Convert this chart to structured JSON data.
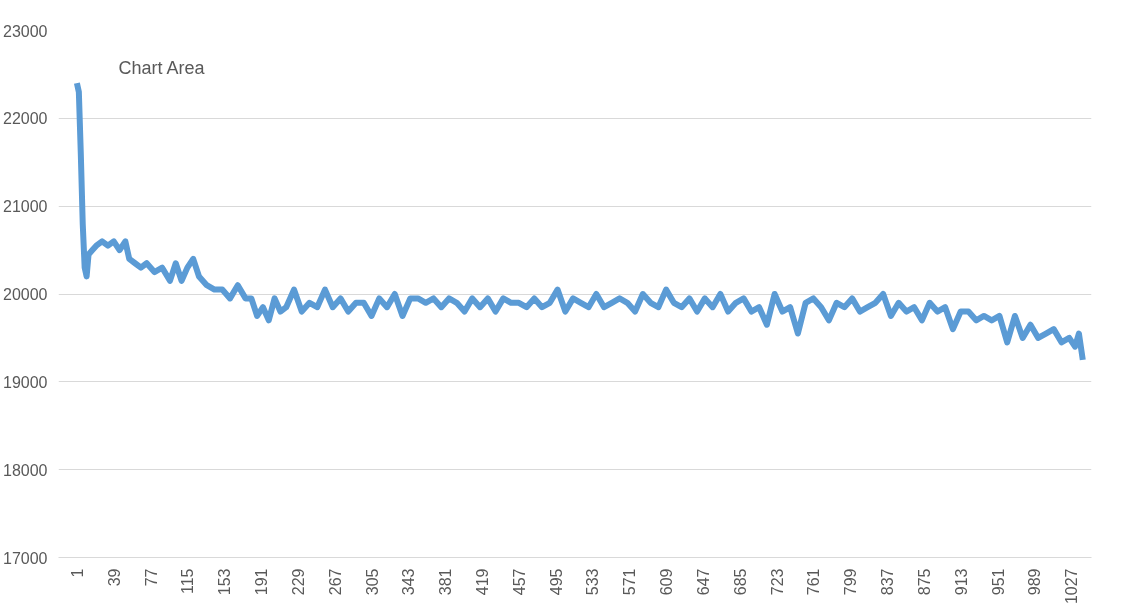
{
  "chart_data": {
    "type": "line",
    "annotations": [
      "Chart Area"
    ],
    "x": [
      1,
      3,
      5,
      7,
      9,
      11,
      13,
      17,
      21,
      27,
      33,
      39,
      45,
      51,
      55,
      61,
      67,
      73,
      81,
      89,
      97,
      103,
      109,
      115,
      121,
      127,
      135,
      143,
      151,
      159,
      167,
      175,
      181,
      187,
      193,
      199,
      205,
      211,
      217,
      225,
      233,
      241,
      249,
      257,
      265,
      273,
      281,
      289,
      297,
      305,
      313,
      321,
      329,
      337,
      345,
      353,
      361,
      369,
      377,
      385,
      393,
      401,
      409,
      417,
      425,
      433,
      441,
      449,
      457,
      465,
      473,
      481,
      489,
      497,
      505,
      513,
      521,
      529,
      537,
      545,
      553,
      561,
      569,
      577,
      585,
      593,
      601,
      609,
      617,
      625,
      633,
      641,
      649,
      657,
      665,
      673,
      681,
      689,
      697,
      705,
      713,
      721,
      729,
      737,
      745,
      753,
      761,
      769,
      777,
      785,
      793,
      801,
      809,
      817,
      825,
      833,
      841,
      849,
      857,
      865,
      873,
      881,
      889,
      897,
      905,
      913,
      921,
      929,
      937,
      945,
      953,
      961,
      969,
      977,
      985,
      993,
      1001,
      1009,
      1017,
      1025,
      1031,
      1035,
      1039
    ],
    "series": [
      {
        "color": "#5b9bd5",
        "values": [
          22400,
          22300,
          21600,
          20800,
          20300,
          20200,
          20450,
          20500,
          20550,
          20600,
          20550,
          20600,
          20500,
          20600,
          20400,
          20350,
          20300,
          20350,
          20250,
          20300,
          20150,
          20350,
          20150,
          20300,
          20400,
          20200,
          20100,
          20050,
          20050,
          19950,
          20100,
          19950,
          19950,
          19750,
          19850,
          19700,
          19950,
          19800,
          19850,
          20050,
          19800,
          19900,
          19850,
          20050,
          19850,
          19950,
          19800,
          19900,
          19900,
          19750,
          19950,
          19850,
          20000,
          19750,
          19950,
          19950,
          19900,
          19950,
          19850,
          19950,
          19900,
          19800,
          19950,
          19850,
          19950,
          19800,
          19950,
          19900,
          19900,
          19850,
          19950,
          19850,
          19900,
          20050,
          19800,
          19950,
          19900,
          19850,
          20000,
          19850,
          19900,
          19950,
          19900,
          19800,
          20000,
          19900,
          19850,
          20050,
          19900,
          19850,
          19950,
          19800,
          19950,
          19850,
          20000,
          19800,
          19900,
          19950,
          19800,
          19850,
          19650,
          20000,
          19800,
          19850,
          19550,
          19900,
          19950,
          19850,
          19700,
          19900,
          19850,
          19950,
          19800,
          19850,
          19900,
          20000,
          19750,
          19900,
          19800,
          19850,
          19700,
          19900,
          19800,
          19850,
          19600,
          19800,
          19800,
          19700,
          19750,
          19700,
          19750,
          19450,
          19750,
          19500,
          19650,
          19500,
          19550,
          19600,
          19450,
          19500,
          19400,
          19550,
          19250
        ]
      }
    ],
    "xlim": [
      -18,
      1048
    ],
    "ylim": [
      17000,
      23000
    ],
    "xticks": [
      1,
      39,
      77,
      115,
      153,
      191,
      229,
      267,
      305,
      343,
      381,
      419,
      457,
      495,
      533,
      571,
      609,
      647,
      685,
      723,
      761,
      799,
      837,
      875,
      913,
      951,
      989,
      1027
    ],
    "yticks": [
      17000,
      18000,
      19000,
      20000,
      21000,
      22000,
      23000
    ],
    "grid": "y",
    "marker": "none",
    "line_style": "solid"
  }
}
